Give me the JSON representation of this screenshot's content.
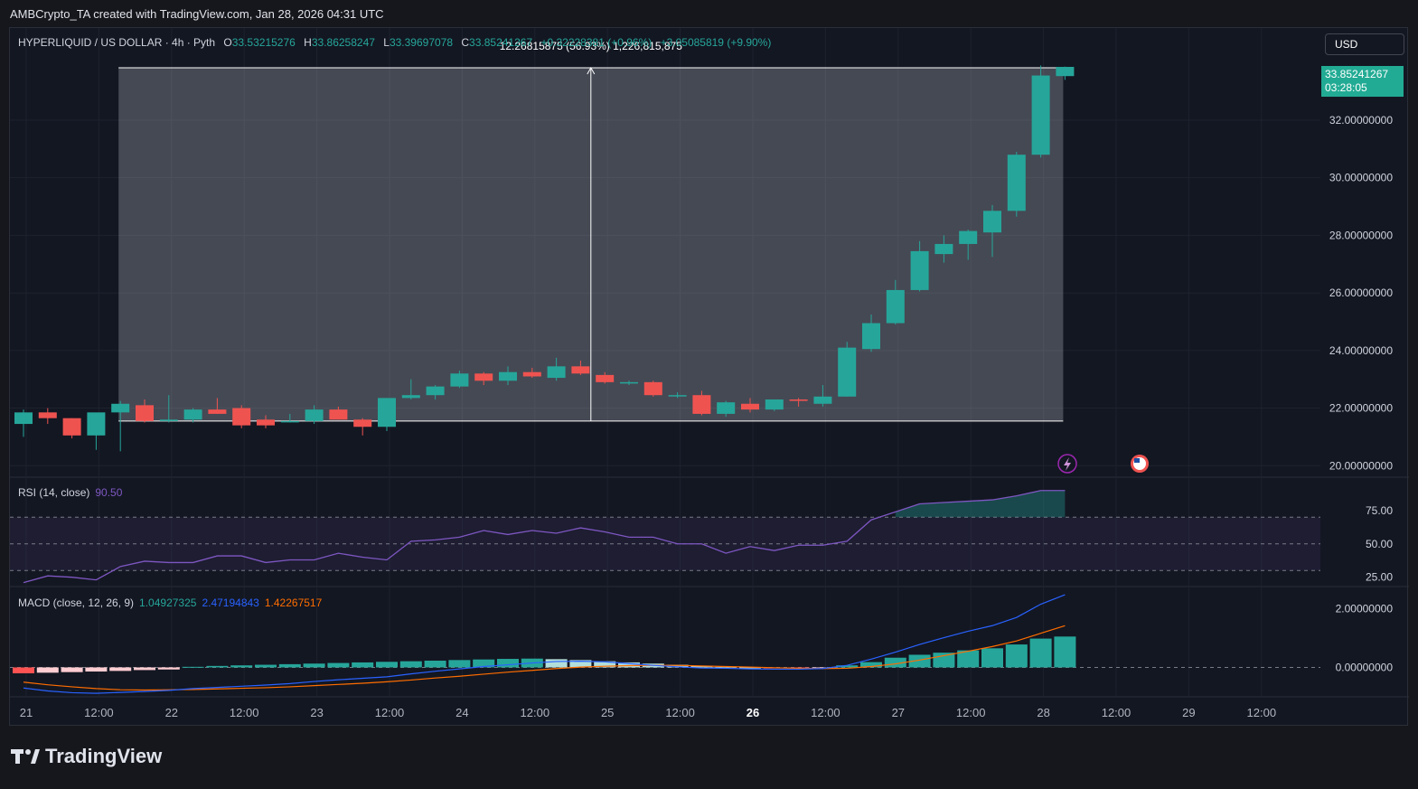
{
  "header": "AMBCrypto_TA created with TradingView.com, Jan 28, 2026 04:31 UTC",
  "legend": {
    "symbol": "HYPERLIQUID / US DOLLAR · 4h · Pyth",
    "o_label": "O",
    "o_value": "33.53215276",
    "h_label": "H",
    "h_value": "33.86258247",
    "l_label": "L",
    "l_value": "33.39697078",
    "c_label": "C",
    "c_value": "33.85241267",
    "change": "+0.32228381 (+0.96%)",
    "change2": "+3.05085819 (+9.90%)"
  },
  "currency_button": "USD",
  "price_tag": {
    "price": "33.85241267",
    "countdown": "03:28:05"
  },
  "measure_label": "12.26815875 (56.93%) 1,226,815,875",
  "rsi": {
    "label": "RSI (14, close)",
    "value": "90.50"
  },
  "macd": {
    "label": "MACD (close, 12, 26, 9)",
    "hist": "1.04927325",
    "macd": "2.47194843",
    "signal": "1.42267517"
  },
  "brand": "TradingView",
  "colors": {
    "up": "#26a69a",
    "down": "#ef5350",
    "rsi": "#7e57c2",
    "macd": "#2962ff",
    "signal": "#ff6d00",
    "background": "#131722"
  },
  "icons": [
    "lightning-icon",
    "us-flag-icon",
    "tradingview-logo-icon"
  ],
  "chart_data": [
    {
      "type": "candlestick",
      "x_ticks": [
        "21",
        "12:00",
        "22",
        "12:00",
        "23",
        "12:00",
        "24",
        "12:00",
        "25",
        "12:00",
        "26",
        "12:00",
        "27",
        "12:00",
        "28",
        "12:00",
        "29",
        "12:00"
      ],
      "y_ticks": [
        "32.00000000",
        "30.00000000",
        "28.00000000",
        "26.00000000",
        "24.00000000",
        "22.00000000",
        "20.00000000"
      ],
      "ylim": [
        19.6,
        35.2
      ],
      "measure_range": [
        21.55,
        33.82
      ],
      "candles": [
        [
          21.45,
          21.95,
          21.0,
          21.85
        ],
        [
          21.85,
          22.0,
          21.45,
          21.65
        ],
        [
          21.65,
          21.65,
          20.95,
          21.05
        ],
        [
          21.05,
          21.8,
          20.55,
          21.85
        ],
        [
          21.85,
          22.25,
          20.5,
          22.15
        ],
        [
          22.1,
          22.3,
          21.5,
          21.55
        ],
        [
          21.55,
          22.45,
          21.5,
          21.6
        ],
        [
          21.6,
          22.0,
          21.5,
          21.95
        ],
        [
          21.95,
          22.35,
          21.8,
          21.8
        ],
        [
          22.0,
          22.1,
          21.3,
          21.4
        ],
        [
          21.6,
          21.75,
          21.3,
          21.4
        ],
        [
          21.55,
          21.8,
          21.5,
          21.55
        ],
        [
          21.55,
          22.1,
          21.45,
          21.95
        ],
        [
          21.95,
          22.05,
          21.6,
          21.6
        ],
        [
          21.6,
          21.65,
          21.05,
          21.35
        ],
        [
          21.35,
          22.35,
          21.2,
          22.35
        ],
        [
          22.35,
          23.0,
          22.3,
          22.45
        ],
        [
          22.45,
          22.8,
          22.3,
          22.75
        ],
        [
          22.75,
          23.3,
          22.7,
          23.2
        ],
        [
          23.2,
          23.25,
          22.8,
          22.95
        ],
        [
          22.95,
          23.45,
          22.8,
          23.25
        ],
        [
          23.25,
          23.4,
          23.05,
          23.1
        ],
        [
          23.05,
          23.75,
          22.95,
          23.45
        ],
        [
          23.45,
          23.65,
          23.15,
          23.2
        ],
        [
          23.15,
          23.25,
          22.85,
          22.9
        ],
        [
          22.9,
          22.95,
          22.8,
          22.9
        ],
        [
          22.9,
          22.95,
          22.4,
          22.45
        ],
        [
          22.45,
          22.55,
          22.35,
          22.45
        ],
        [
          22.45,
          22.6,
          21.75,
          21.8
        ],
        [
          21.8,
          22.25,
          21.7,
          22.2
        ],
        [
          22.15,
          22.35,
          21.85,
          21.95
        ],
        [
          21.95,
          22.3,
          21.9,
          22.3
        ],
        [
          22.3,
          22.35,
          22.05,
          22.25
        ],
        [
          22.15,
          22.8,
          22.05,
          22.4
        ],
        [
          22.4,
          24.3,
          22.4,
          24.1
        ],
        [
          24.05,
          25.25,
          23.95,
          24.95
        ],
        [
          24.95,
          26.45,
          24.9,
          26.1
        ],
        [
          26.1,
          27.8,
          26.05,
          27.45
        ],
        [
          27.35,
          28.0,
          27.05,
          27.7
        ],
        [
          27.7,
          28.2,
          27.15,
          28.15
        ],
        [
          28.1,
          29.05,
          27.25,
          28.85
        ],
        [
          28.85,
          30.9,
          28.65,
          30.8
        ],
        [
          30.8,
          33.9,
          30.7,
          33.55
        ],
        [
          33.53,
          33.86,
          33.4,
          33.85
        ]
      ]
    },
    {
      "type": "line",
      "name": "RSI (14, close)",
      "ylim": [
        18,
        100
      ],
      "y_ticks": [
        "75.00",
        "50.00",
        "25.00"
      ],
      "levels": [
        70,
        50,
        30
      ],
      "values": [
        21,
        26,
        25,
        23,
        33,
        37,
        36,
        36,
        41,
        41,
        36,
        38,
        38,
        43,
        40,
        38,
        52,
        53,
        55,
        60,
        57,
        60,
        58,
        62,
        59,
        55,
        55,
        50,
        50,
        43,
        48,
        45,
        49,
        49,
        52,
        68,
        74,
        80,
        81,
        82,
        83,
        86,
        90,
        90
      ]
    },
    {
      "type": "bar",
      "name": "MACD (close, 12, 26, 9)",
      "ylim": [
        -1.0,
        2.75
      ],
      "y_ticks": [
        "2.00000000",
        "0.00000000"
      ],
      "hist": [
        -0.2,
        -0.18,
        -0.16,
        -0.14,
        -0.12,
        -0.09,
        -0.07,
        0.02,
        0.05,
        0.07,
        0.09,
        0.11,
        0.13,
        0.15,
        0.17,
        0.19,
        0.21,
        0.23,
        0.25,
        0.27,
        0.29,
        0.3,
        0.28,
        0.25,
        0.21,
        0.17,
        0.13,
        0.09,
        0.05,
        0.02,
        0.0,
        -0.01,
        -0.02,
        -0.01,
        0.07,
        0.18,
        0.33,
        0.43,
        0.5,
        0.58,
        0.65,
        0.78,
        0.98,
        1.05
      ],
      "macd": [
        -0.7,
        -0.8,
        -0.86,
        -0.88,
        -0.85,
        -0.82,
        -0.78,
        -0.72,
        -0.68,
        -0.64,
        -0.6,
        -0.55,
        -0.48,
        -0.42,
        -0.37,
        -0.32,
        -0.22,
        -0.13,
        -0.05,
        0.03,
        0.09,
        0.15,
        0.2,
        0.21,
        0.19,
        0.13,
        0.07,
        0.02,
        -0.02,
        -0.03,
        -0.05,
        -0.06,
        -0.06,
        -0.04,
        0.07,
        0.28,
        0.52,
        0.78,
        1.01,
        1.23,
        1.42,
        1.7,
        2.15,
        2.47
      ],
      "signal": [
        -0.5,
        -0.59,
        -0.66,
        -0.72,
        -0.76,
        -0.77,
        -0.76,
        -0.75,
        -0.73,
        -0.71,
        -0.69,
        -0.66,
        -0.62,
        -0.58,
        -0.54,
        -0.49,
        -0.43,
        -0.36,
        -0.3,
        -0.23,
        -0.16,
        -0.1,
        -0.04,
        0.01,
        0.04,
        0.06,
        0.07,
        0.07,
        0.05,
        0.03,
        0.01,
        -0.01,
        -0.03,
        -0.04,
        -0.03,
        0.03,
        0.12,
        0.25,
        0.4,
        0.55,
        0.71,
        0.9,
        1.16,
        1.42
      ]
    }
  ]
}
